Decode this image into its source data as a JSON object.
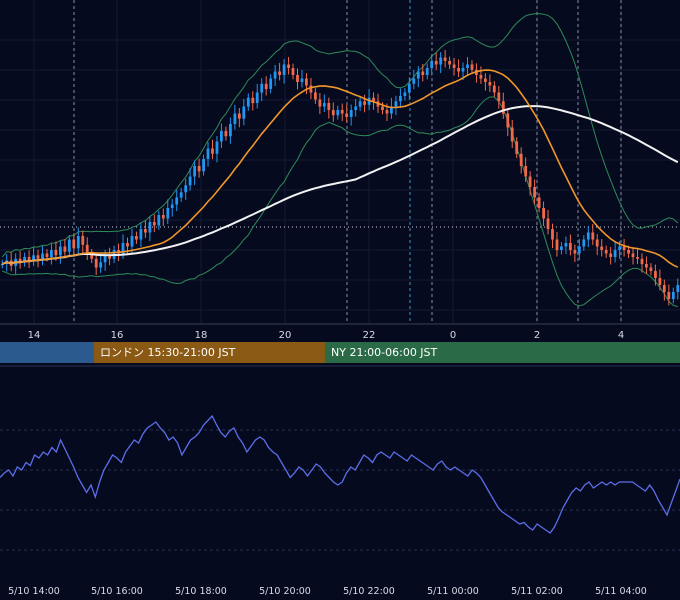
{
  "chart_data": [
    {
      "type": "candlestick",
      "overlays": [
        {
          "kind": "bollinger-bands",
          "color": "#2e8b57"
        },
        {
          "kind": "moving-average-short",
          "color": "#f0962a"
        },
        {
          "kind": "moving-average-long",
          "color": "#f2f2f2"
        }
      ],
      "x_ticks": [
        "14",
        "16",
        "18",
        "20",
        "22",
        "0",
        "2",
        "4"
      ],
      "candle_colors": {
        "up": "#2196f3",
        "down": "#f06a4a"
      },
      "grid": true,
      "close_series": [
        0.52,
        0.54,
        0.51,
        0.55,
        0.53,
        0.56,
        0.54,
        0.57,
        0.55,
        0.58,
        0.56,
        0.6,
        0.57,
        0.62,
        0.59,
        0.66,
        0.61,
        0.68,
        0.63,
        0.58,
        0.55,
        0.5,
        0.53,
        0.57,
        0.55,
        0.6,
        0.58,
        0.64,
        0.62,
        0.68,
        0.66,
        0.72,
        0.7,
        0.76,
        0.74,
        0.8,
        0.78,
        0.84,
        0.86,
        0.9,
        0.93,
        0.97,
        1.02,
        1.08,
        1.05,
        1.12,
        1.18,
        1.15,
        1.22,
        1.28,
        1.25,
        1.32,
        1.38,
        1.35,
        1.42,
        1.47,
        1.44,
        1.5,
        1.55,
        1.52,
        1.58,
        1.62,
        1.6,
        1.66,
        1.64,
        1.6,
        1.56,
        1.58,
        1.54,
        1.5,
        1.46,
        1.42,
        1.44,
        1.4,
        1.37,
        1.4,
        1.38,
        1.36,
        1.4,
        1.42,
        1.45,
        1.43,
        1.47,
        1.45,
        1.42,
        1.4,
        1.38,
        1.42,
        1.45,
        1.48,
        1.5,
        1.55,
        1.58,
        1.62,
        1.6,
        1.64,
        1.68,
        1.66,
        1.7,
        1.68,
        1.66,
        1.64,
        1.62,
        1.64,
        1.66,
        1.63,
        1.6,
        1.58,
        1.56,
        1.54,
        1.5,
        1.45,
        1.38,
        1.3,
        1.22,
        1.15,
        1.08,
        1.02,
        0.96,
        0.9,
        0.84,
        0.78,
        0.72,
        0.66,
        0.6,
        0.62,
        0.64,
        0.6,
        0.58,
        0.62,
        0.66,
        0.7,
        0.66,
        0.62,
        0.6,
        0.58,
        0.56,
        0.6,
        0.62,
        0.6,
        0.58,
        0.56,
        0.55,
        0.52,
        0.5,
        0.48,
        0.44,
        0.4,
        0.36,
        0.32,
        0.36,
        0.4
      ]
    },
    {
      "type": "line",
      "color": "#5b6ee8",
      "x_ticks": [
        "5/10 14:00",
        "5/10 16:00",
        "5/10 18:00",
        "5/10 20:00",
        "5/10 22:00",
        "5/11 00:00",
        "5/11 02:00",
        "5/11 04:00"
      ],
      "grid": "dashed",
      "values": [
        0.45,
        0.48,
        0.5,
        0.46,
        0.52,
        0.5,
        0.55,
        0.53,
        0.6,
        0.58,
        0.62,
        0.6,
        0.65,
        0.62,
        0.7,
        0.64,
        0.58,
        0.52,
        0.45,
        0.4,
        0.35,
        0.4,
        0.32,
        0.42,
        0.5,
        0.55,
        0.6,
        0.58,
        0.55,
        0.62,
        0.66,
        0.7,
        0.68,
        0.74,
        0.78,
        0.8,
        0.82,
        0.78,
        0.75,
        0.7,
        0.72,
        0.68,
        0.6,
        0.65,
        0.7,
        0.72,
        0.75,
        0.8,
        0.83,
        0.86,
        0.8,
        0.75,
        0.72,
        0.76,
        0.78,
        0.72,
        0.68,
        0.62,
        0.66,
        0.7,
        0.72,
        0.7,
        0.65,
        0.62,
        0.6,
        0.55,
        0.5,
        0.45,
        0.48,
        0.52,
        0.5,
        0.46,
        0.5,
        0.54,
        0.52,
        0.48,
        0.45,
        0.42,
        0.4,
        0.42,
        0.48,
        0.52,
        0.5,
        0.55,
        0.6,
        0.58,
        0.55,
        0.6,
        0.62,
        0.6,
        0.58,
        0.62,
        0.6,
        0.58,
        0.56,
        0.6,
        0.58,
        0.56,
        0.54,
        0.52,
        0.5,
        0.54,
        0.56,
        0.52,
        0.5,
        0.52,
        0.5,
        0.48,
        0.46,
        0.5,
        0.48,
        0.45,
        0.4,
        0.35,
        0.3,
        0.25,
        0.22,
        0.2,
        0.18,
        0.16,
        0.14,
        0.15,
        0.12,
        0.1,
        0.14,
        0.12,
        0.1,
        0.08,
        0.12,
        0.18,
        0.25,
        0.3,
        0.35,
        0.38,
        0.36,
        0.4,
        0.42,
        0.38,
        0.4,
        0.42,
        0.4,
        0.42,
        0.4,
        0.42,
        0.42,
        0.42,
        0.42,
        0.4,
        0.38,
        0.36,
        0.4,
        0.36,
        0.3,
        0.25,
        0.2,
        0.28,
        0.36,
        0.44
      ]
    }
  ],
  "sessions": [
    {
      "label": "",
      "color": "#2a5a8e"
    },
    {
      "label": "ロンドン 15:30-21:00 JST",
      "color": "#8a5a14"
    },
    {
      "label": "NY 21:00-06:00 JST",
      "color": "#2a6a46"
    }
  ]
}
